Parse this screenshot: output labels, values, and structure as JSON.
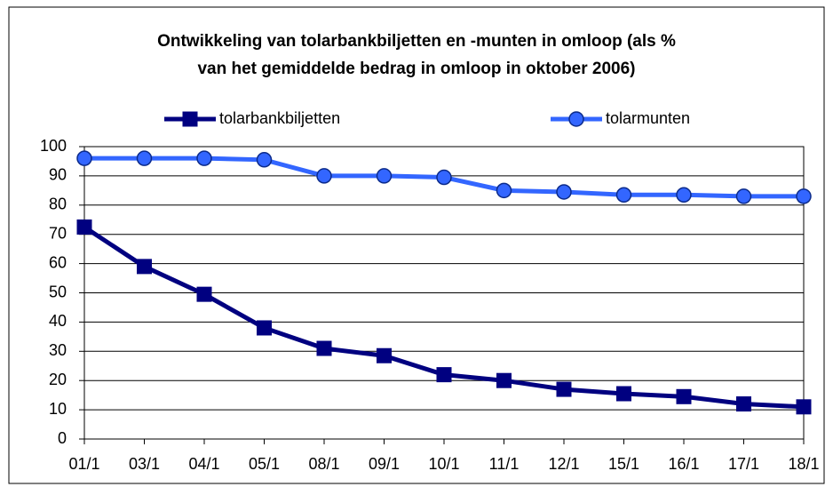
{
  "chart_data": {
    "type": "line",
    "title": [
      "Ontwikkeling van tolarbankbiljetten en -munten in omloop (als %",
      "van het gemiddelde bedrag in omloop in oktober 2006)"
    ],
    "categories": [
      "01/1",
      "03/1",
      "04/1",
      "05/1",
      "08/1",
      "09/1",
      "10/1",
      "11/1",
      "12/1",
      "15/1",
      "16/1",
      "17/1",
      "18/1"
    ],
    "series": [
      {
        "name": "tolarbankbiljetten",
        "color": "#000080",
        "marker": "square",
        "values": [
          72.5,
          59,
          49.5,
          38,
          31,
          28.5,
          22,
          20,
          17,
          15.5,
          14.5,
          12,
          11
        ]
      },
      {
        "name": "tolarmunten",
        "color": "#3366ff",
        "marker": "circle",
        "values": [
          96,
          96,
          96,
          95.5,
          90,
          90,
          89.5,
          85,
          84.5,
          83.5,
          83.5,
          83,
          83
        ]
      }
    ],
    "ylim": [
      0,
      100
    ],
    "yticks": [
      0,
      10,
      20,
      30,
      40,
      50,
      60,
      70,
      80,
      90,
      100
    ],
    "grid": true,
    "legend": "top"
  }
}
